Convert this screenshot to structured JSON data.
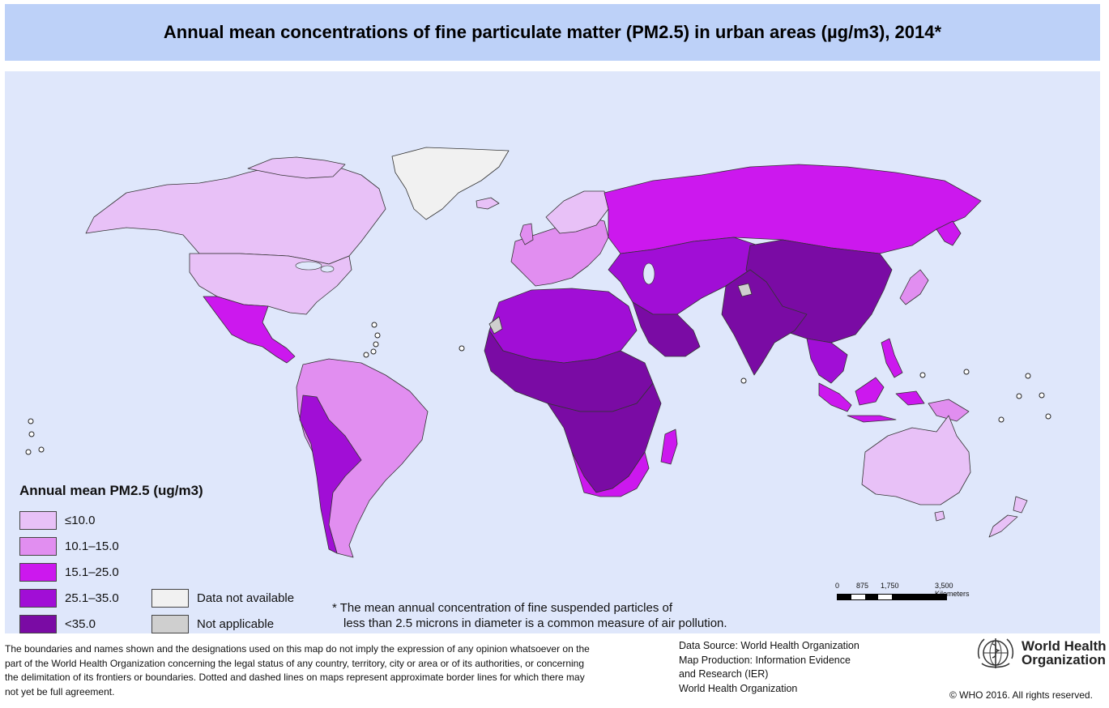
{
  "title": "Annual mean concentrations of fine particulate matter (PM2.5) in urban areas (µg/m3), 2014*",
  "colors": {
    "band1": "#e8c1f7",
    "band2": "#e18ef0",
    "band3": "#cc18ee",
    "band4": "#a10ed6",
    "band5": "#7a0ba4",
    "no_data": "#f1f1f1",
    "not_applicable": "#cfcfcf",
    "ocean": "#dfe7fb",
    "title_bg": "#bdd1f8"
  },
  "legend": {
    "title": "Annual mean PM2.5 (ug/m3)",
    "items": [
      {
        "label": "≤10.0",
        "color": "#e8c1f7"
      },
      {
        "label": "10.1–15.0",
        "color": "#e18ef0"
      },
      {
        "label": "15.1–25.0",
        "color": "#cc18ee"
      },
      {
        "label": "25.1–35.0",
        "color": "#a10ed6"
      },
      {
        "label": "<35.0",
        "color": "#7a0ba4"
      }
    ],
    "extra": [
      {
        "label": "Data not available",
        "color": "#f1f1f1"
      },
      {
        "label": "Not applicable",
        "color": "#cfcfcf"
      }
    ]
  },
  "footnote": {
    "line1": "* The mean annual concentration of fine suspended particles of",
    "line2": "less than 2.5 microns in diameter is a common measure of air pollution."
  },
  "scale": {
    "labels": [
      "0",
      "875",
      "1,750",
      "3,500 Kilometers"
    ]
  },
  "disclaimer": "The boundaries and names shown and the designations used on this map do not imply the expression of any opinion whatsoever on the part of the World Health Organization concerning the legal status of any country, territory, city or area or of its authorities, or concerning the delimitation of its frontiers or boundaries. Dotted and dashed lines on maps represent approximate border lines for which there may not yet be full agreement.",
  "source": {
    "line1": "Data Source: World Health Organization",
    "line2": "Map Production: Information Evidence",
    "line3": "and Research (IER)",
    "line4": "World Health Organization"
  },
  "logo": {
    "line1": "World Health",
    "line2": "Organization"
  },
  "copyright": "© WHO 2016. All rights reserved."
}
